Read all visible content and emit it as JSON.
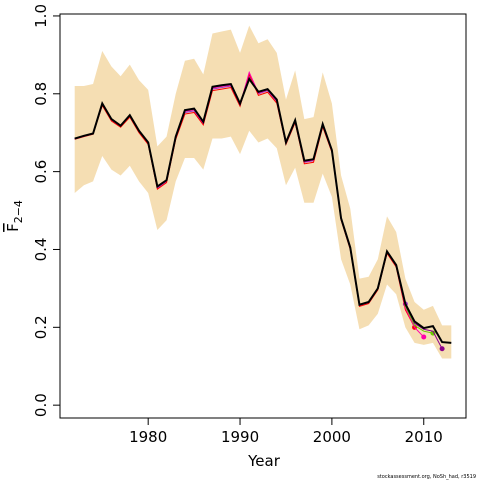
{
  "chart_data": {
    "type": "line",
    "x_label": "Year",
    "y_label": {
      "main": "F",
      "sub": "2−4"
    },
    "footer": "stockassessment.org, NoSh_had, r3519",
    "xlim": [
      1970.4,
      2014.6
    ],
    "ylim": [
      -0.033,
      1.005
    ],
    "xticks": [
      1980,
      1990,
      2000,
      2010
    ],
    "yticks": [
      {
        "value": 0,
        "label": "0.0"
      },
      0.2,
      0.4,
      0.6,
      0.8,
      {
        "value": 1,
        "label": "1.0"
      }
    ],
    "x": [
      1972,
      1973,
      1974,
      1975,
      1976,
      1977,
      1978,
      1979,
      1980,
      1981,
      1982,
      1983,
      1984,
      1985,
      1986,
      1987,
      1988,
      1989,
      1990,
      1991,
      1992,
      1993,
      1994,
      1995,
      1996,
      1997,
      1998,
      1999,
      2000,
      2001,
      2002,
      2003,
      2004,
      2005,
      2006,
      2007,
      2008,
      2009,
      2010,
      2011,
      2012,
      2013
    ],
    "band": {
      "color": "#f5deb3",
      "upper": [
        0.82,
        0.82,
        0.825,
        0.91,
        0.87,
        0.845,
        0.875,
        0.835,
        0.81,
        0.665,
        0.69,
        0.8,
        0.885,
        0.89,
        0.85,
        0.955,
        0.96,
        0.965,
        0.905,
        0.975,
        0.93,
        0.94,
        0.905,
        0.785,
        0.86,
        0.735,
        0.74,
        0.855,
        0.775,
        0.59,
        0.505,
        0.325,
        0.33,
        0.375,
        0.485,
        0.445,
        0.325,
        0.265,
        0.245,
        0.255,
        0.205,
        0.205
      ],
      "lower": [
        0.545,
        0.565,
        0.575,
        0.64,
        0.605,
        0.59,
        0.615,
        0.575,
        0.545,
        0.45,
        0.475,
        0.575,
        0.635,
        0.635,
        0.605,
        0.685,
        0.685,
        0.69,
        0.645,
        0.705,
        0.675,
        0.685,
        0.66,
        0.565,
        0.61,
        0.52,
        0.52,
        0.595,
        0.535,
        0.375,
        0.31,
        0.195,
        0.205,
        0.235,
        0.31,
        0.285,
        0.2,
        0.16,
        0.155,
        0.16,
        0.12,
        0.12
      ]
    },
    "series": [
      {
        "color": "#9932cc",
        "values": [
          0.685,
          0.692,
          0.698,
          0.772,
          0.732,
          0.716,
          0.742,
          0.702,
          0.672,
          0.558,
          0.575,
          0.686,
          0.752,
          0.756,
          0.722,
          0.812,
          0.816,
          0.82,
          0.77,
          0.845,
          0.8,
          0.808,
          0.78,
          0.672,
          0.728,
          0.624,
          0.628,
          0.718,
          0.652,
          0.478,
          0.402,
          0.256,
          0.263,
          0.298,
          0.392,
          0.358,
          0.26,
          null,
          null,
          null,
          null,
          null
        ]
      },
      {
        "color": "#ff0000",
        "values": [
          0.683,
          0.69,
          0.696,
          0.77,
          0.73,
          0.714,
          0.74,
          0.7,
          0.67,
          0.555,
          0.572,
          0.683,
          0.748,
          0.752,
          0.72,
          0.808,
          0.812,
          0.816,
          0.768,
          0.85,
          0.796,
          0.804,
          0.776,
          0.67,
          0.726,
          0.62,
          0.624,
          0.715,
          0.65,
          0.476,
          0.4,
          0.254,
          0.261,
          0.296,
          0.39,
          0.355,
          0.245,
          0.2,
          null,
          null,
          null,
          null
        ]
      },
      {
        "color": "#ff00aa",
        "values": [
          0.684,
          0.691,
          0.697,
          0.774,
          0.734,
          0.717,
          0.744,
          0.704,
          0.674,
          0.56,
          0.577,
          0.688,
          0.755,
          0.759,
          0.725,
          0.815,
          0.819,
          0.822,
          0.772,
          0.855,
          0.802,
          0.81,
          0.782,
          0.673,
          0.73,
          0.626,
          0.63,
          0.72,
          0.653,
          0.479,
          0.403,
          0.257,
          0.264,
          0.299,
          0.394,
          0.358,
          0.25,
          0.2,
          0.175,
          null,
          null,
          null
        ]
      },
      {
        "color": "#66cc00",
        "values": [
          0.685,
          0.692,
          0.698,
          0.775,
          0.735,
          0.718,
          0.745,
          0.705,
          0.675,
          0.562,
          0.578,
          0.69,
          0.758,
          0.762,
          0.728,
          0.818,
          0.822,
          0.825,
          0.775,
          0.84,
          0.805,
          0.812,
          0.785,
          0.675,
          0.732,
          0.628,
          0.632,
          0.722,
          0.655,
          0.48,
          0.405,
          0.258,
          0.265,
          0.3,
          0.395,
          0.36,
          0.255,
          0.205,
          0.19,
          0.185,
          null,
          null
        ]
      },
      {
        "color": "#8b008b",
        "values": [
          0.685,
          0.692,
          0.698,
          0.775,
          0.735,
          0.718,
          0.745,
          0.705,
          0.675,
          0.562,
          0.578,
          0.69,
          0.758,
          0.762,
          0.728,
          0.818,
          0.822,
          0.825,
          0.775,
          0.838,
          0.805,
          0.812,
          0.785,
          0.675,
          0.732,
          0.628,
          0.632,
          0.722,
          0.655,
          0.48,
          0.405,
          0.258,
          0.265,
          0.3,
          0.395,
          0.36,
          0.26,
          0.21,
          0.195,
          0.19,
          0.145,
          null
        ]
      },
      {
        "color": "#000000",
        "values": [
          0.685,
          0.692,
          0.698,
          0.775,
          0.735,
          0.718,
          0.745,
          0.705,
          0.675,
          0.562,
          0.578,
          0.69,
          0.758,
          0.762,
          0.728,
          0.818,
          0.822,
          0.825,
          0.775,
          0.838,
          0.805,
          0.812,
          0.785,
          0.675,
          0.732,
          0.628,
          0.632,
          0.722,
          0.655,
          0.48,
          0.405,
          0.258,
          0.265,
          0.3,
          0.395,
          0.36,
          0.26,
          0.215,
          0.198,
          0.203,
          0.162,
          0.16
        ]
      }
    ]
  }
}
